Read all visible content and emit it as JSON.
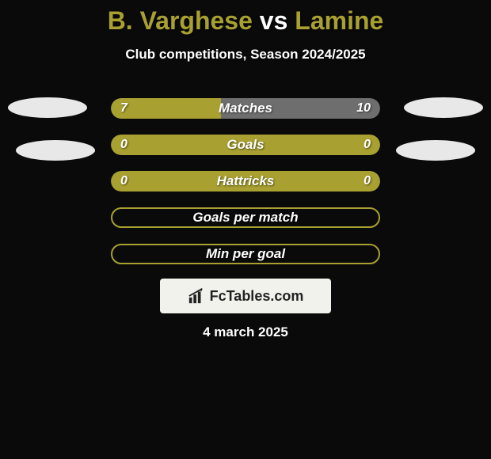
{
  "background_color": "#0a0a0a",
  "title": {
    "player1_name": "B. Varghese",
    "vs": " vs ",
    "player2_name": "Lamine",
    "player1_color": "#a8a030",
    "vs_color": "#ffffff",
    "player2_color": "#a8a030",
    "fontsize": 32
  },
  "subtitle": {
    "text": "Club competitions, Season 2024/2025",
    "color": "#ffffff",
    "fontsize": 17
  },
  "badges": {
    "left_color": "#e8e8e8",
    "right_color": "#e8e8e8"
  },
  "bars": [
    {
      "label": "Matches",
      "left_val": "7",
      "right_val": "10",
      "left_pct": 41,
      "right_pct": 59,
      "left_color": "#a8a030",
      "right_color": "#6e6e6e",
      "show_values": true,
      "filled": true
    },
    {
      "label": "Goals",
      "left_val": "0",
      "right_val": "0",
      "left_pct": 50,
      "right_pct": 50,
      "left_color": "#a8a030",
      "right_color": "#a8a030",
      "show_values": true,
      "filled": true
    },
    {
      "label": "Hattricks",
      "left_val": "0",
      "right_val": "0",
      "left_pct": 50,
      "right_pct": 50,
      "left_color": "#a8a030",
      "right_color": "#a8a030",
      "show_values": true,
      "filled": true
    },
    {
      "label": "Goals per match",
      "left_val": "",
      "right_val": "",
      "left_pct": 0,
      "right_pct": 0,
      "border_color": "#a8a030",
      "show_values": false,
      "filled": false
    },
    {
      "label": "Min per goal",
      "left_val": "",
      "right_val": "",
      "left_pct": 0,
      "right_pct": 0,
      "border_color": "#a8a030",
      "show_values": false,
      "filled": false
    }
  ],
  "bar_label_color": "#ffffff",
  "bar_value_color": "#ffffff",
  "logo": {
    "background": "#f2f2ec",
    "text": "FcTables.com",
    "icon_color": "#222222"
  },
  "date": {
    "text": "4 march 2025",
    "color": "#ffffff"
  }
}
